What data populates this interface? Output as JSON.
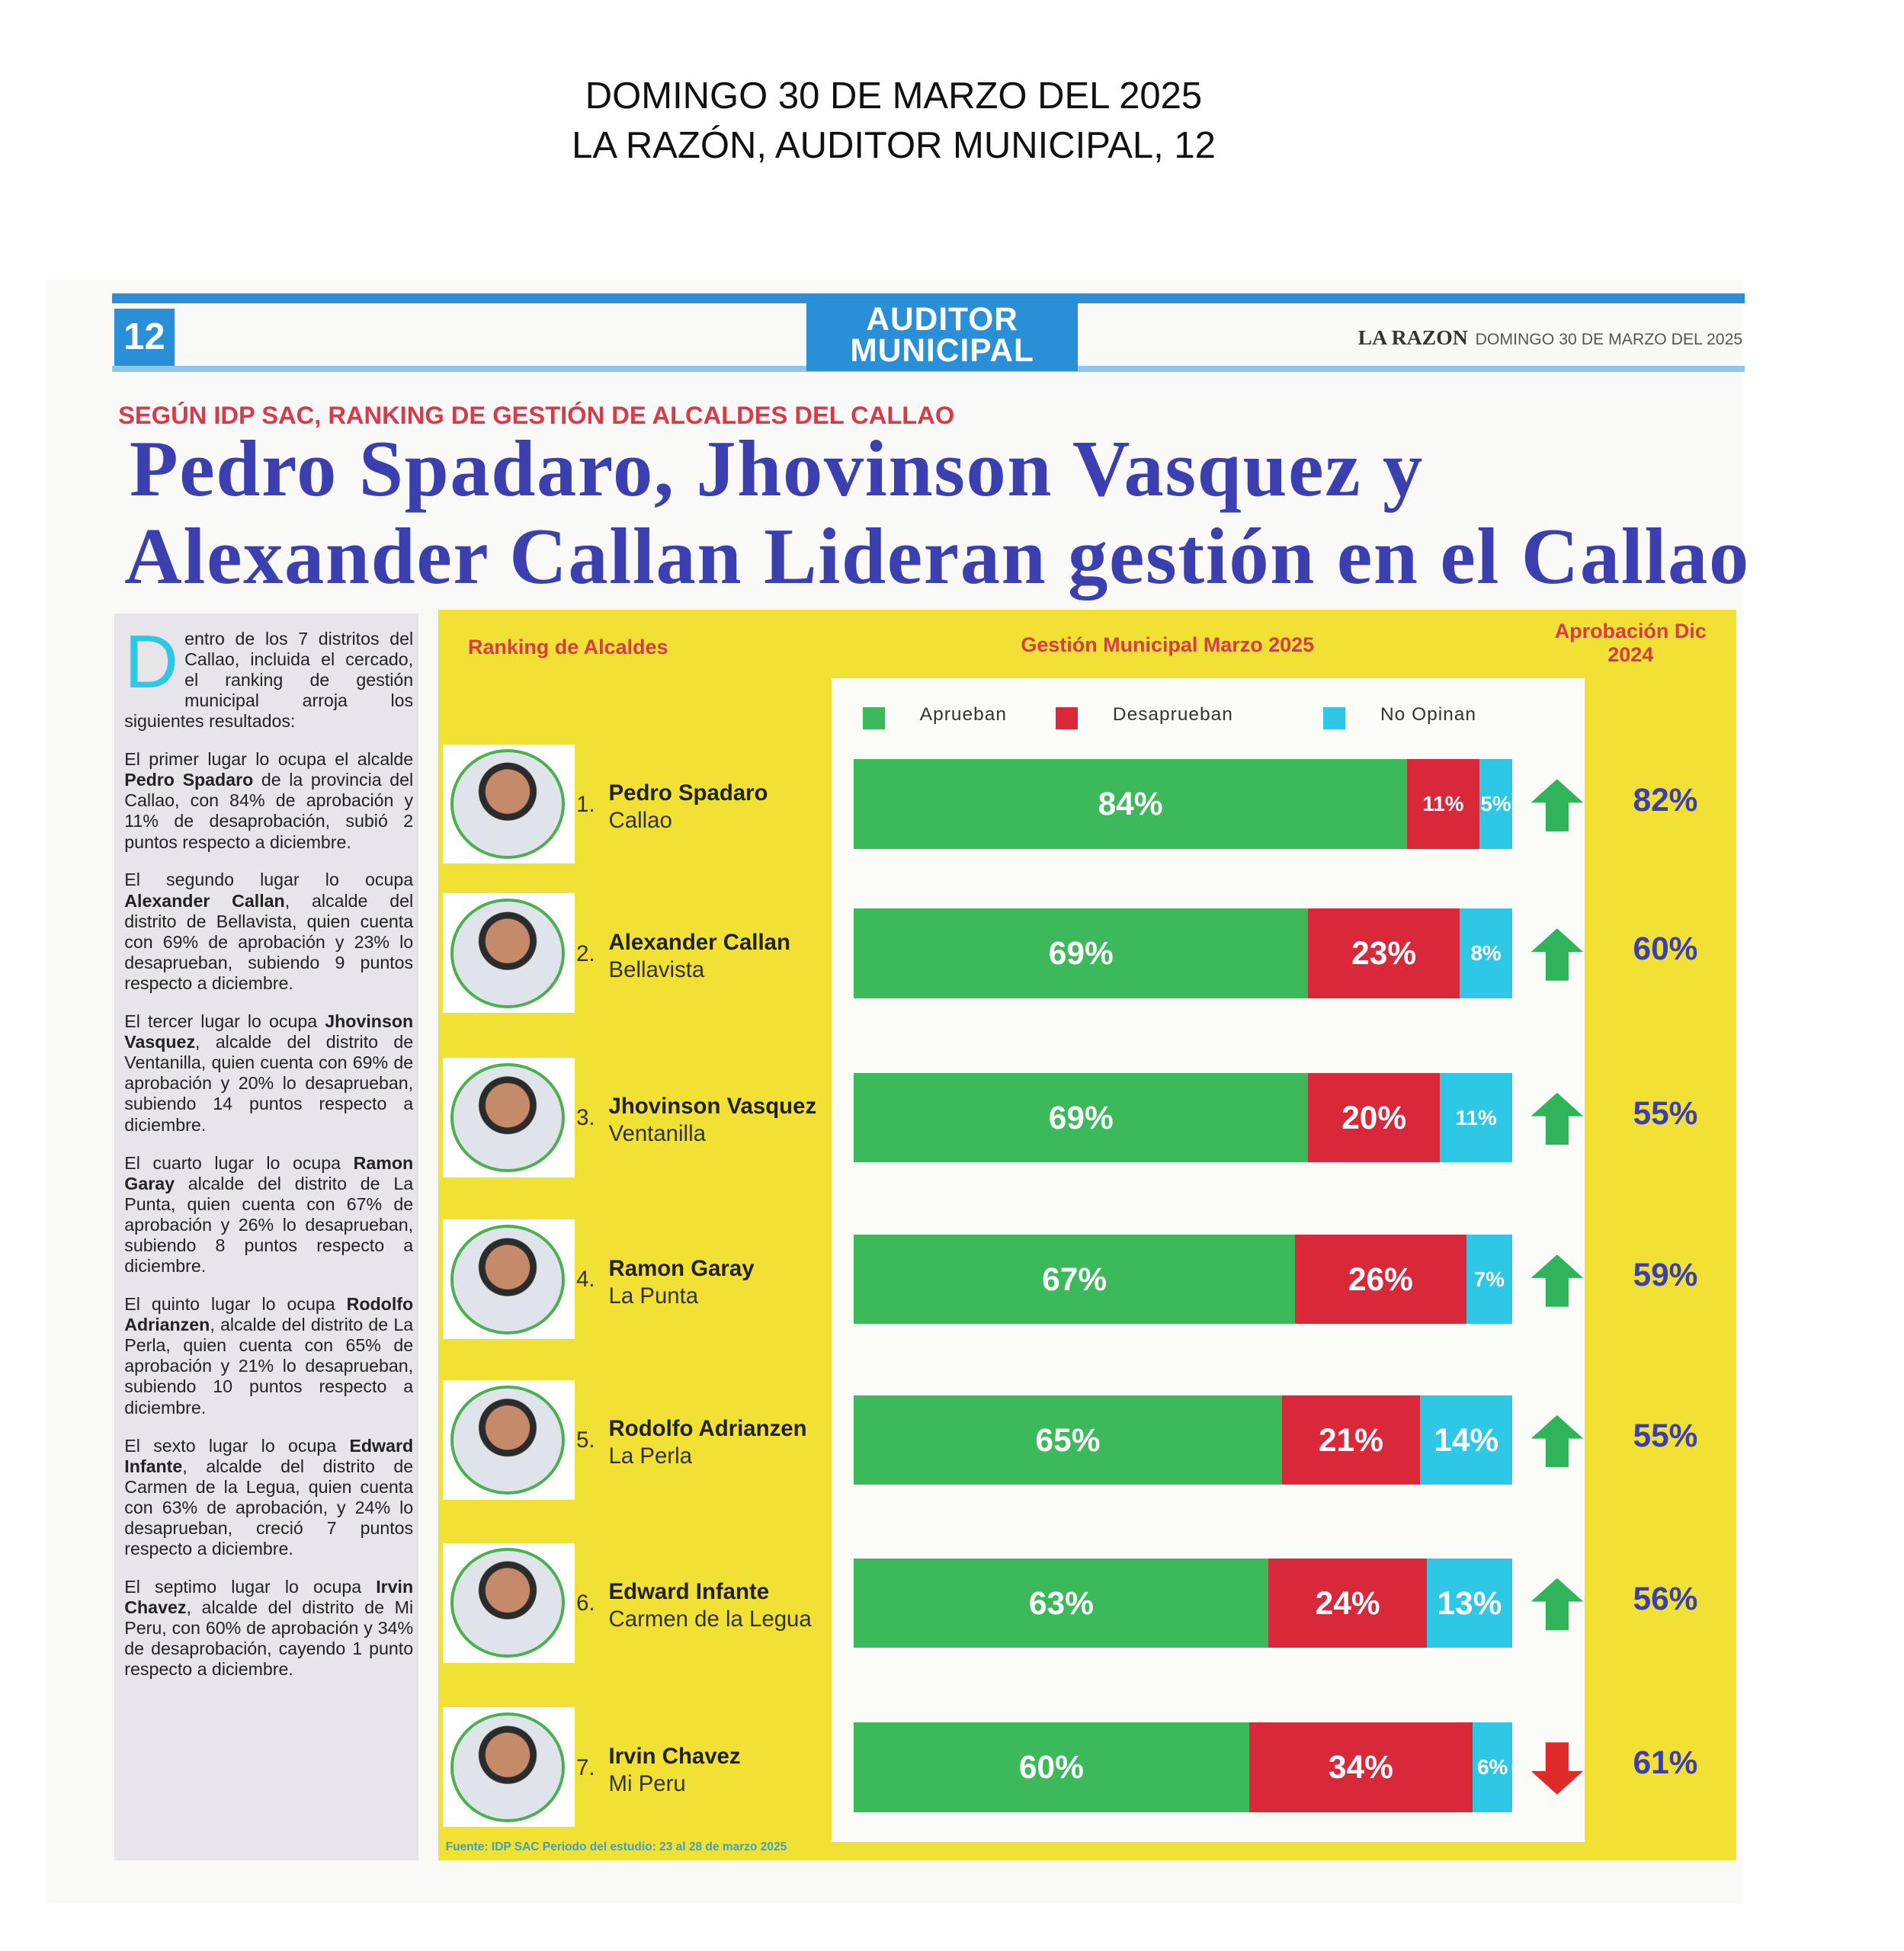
{
  "caption": {
    "line1": "DOMINGO 30 DE MARZO DEL 2025",
    "line2": "LA RAZÓN, AUDITOR MUNICIPAL, 12"
  },
  "header": {
    "page_number": "12",
    "logo_line1": "AUDITOR",
    "logo_line2": "MUNICIPAL",
    "newspaper": "LA RAZON",
    "date": "DOMINGO 30 DE MARZO DEL 2025"
  },
  "kicker": "SEGÚN IDP SAC, RANKING DE GESTIÓN DE ALCALDES DEL CALLAO",
  "headline": {
    "line1": "Pedro Spadaro, Jhovinson Vasquez y",
    "line2": "Alexander Callan Lideran gestión en el Callao"
  },
  "article": {
    "intro": "Dentro de los 7 distritos del Callao, incluida el cercado, el ranking de gestión municipal arroja los siguientes resultados:",
    "paragraphs": [
      {
        "before": "El primer lugar lo ocupa el alcalde ",
        "name": "Pedro Spadaro",
        "after": " de la provincia del Callao, con 84% de aprobación y 11% de desaprobación, subió 2 puntos respecto a diciembre."
      },
      {
        "before": "El segundo lugar lo ocupa ",
        "name": "Alexander Callan",
        "after": ", alcalde del distrito de Bellavista, quien cuenta con 69% de aprobación y 23% lo desaprueban, subiendo 9 puntos respecto a diciembre."
      },
      {
        "before": "El tercer lugar lo ocupa ",
        "name": "Jhovinson Vasquez",
        "after": ", alcalde del distrito de Ventanilla, quien cuenta con 69% de aprobación y 20% lo desaprueban, subiendo 14 puntos respecto a diciembre."
      },
      {
        "before": "El cuarto lugar lo ocupa ",
        "name": "Ramon Garay",
        "after": " alcalde del distrito de La Punta, quien cuenta con 67% de aprobación y 26% lo desaprueban, subiendo 8 puntos respecto a diciembre."
      },
      {
        "before": "El quinto lugar lo ocupa ",
        "name": "Rodolfo Adrianzen",
        "after": ", alcalde del distrito de La Perla, quien cuenta con 65% de aprobación y 21% lo desaprueban, subiendo 10 puntos respecto a diciembre."
      },
      {
        "before": "El sexto lugar lo ocupa ",
        "name": "Edward Infante",
        "after": ", alcalde del distrito de Carmen de la Legua, quien cuenta con 63% de aprobación, y 24% lo desaprueban, creció 7 puntos respecto a diciembre."
      },
      {
        "before": "El septimo lugar lo ocupa ",
        "name": "Irvin Chavez",
        "after": ", alcalde del distrito de Mi Peru, con 60% de aprobación y 34% de desaprobación, cayendo 1 punto respecto a diciembre."
      }
    ]
  },
  "chart_data": {
    "type": "bar",
    "stacked": true,
    "orientation": "horizontal",
    "ranking_title": "Ranking de Alcaldes",
    "title": "Gestión Municipal Marzo 2025",
    "previous_title": "Aprobación Dic 2024",
    "ranks": [
      "1.",
      "2.",
      "3.",
      "4.",
      "5.",
      "6.",
      "7."
    ],
    "categories": [
      "Pedro Spadaro",
      "Alexander Callan",
      "Jhovinson Vasquez",
      "Ramon Garay",
      "Rodolfo Adrianzen",
      "Edward Infante",
      "Irvin Chavez"
    ],
    "districts": [
      "Callao",
      "Bellavista",
      "Ventanilla",
      "La Punta",
      "La Perla",
      "Carmen de la Legua",
      "Mi Peru"
    ],
    "xlim": [
      0,
      100
    ],
    "series": [
      {
        "name": "Aprueban",
        "color": "#3cb95a",
        "values": [
          84,
          69,
          69,
          67,
          65,
          63,
          60
        ],
        "value_labels": [
          "84%",
          "69%",
          "69%",
          "67%",
          "65%",
          "63%",
          "60%"
        ]
      },
      {
        "name": "Desaprueban",
        "color": "#d8283a",
        "values": [
          11,
          23,
          20,
          26,
          21,
          24,
          34
        ],
        "value_labels": [
          "11%",
          "23%",
          "20%",
          "26%",
          "21%",
          "24%",
          "34%"
        ]
      },
      {
        "name": "No Opinan",
        "color": "#2ec8e6",
        "values": [
          5,
          8,
          11,
          7,
          14,
          13,
          6
        ],
        "value_labels": [
          "5%",
          "8%",
          "11%",
          "7%",
          "14%",
          "13%",
          "6%"
        ]
      }
    ],
    "trend": [
      "up",
      "up",
      "up",
      "up",
      "up",
      "up",
      "down"
    ],
    "previous_values": [
      82,
      60,
      55,
      59,
      55,
      56,
      61
    ],
    "previous_value_labels": [
      "82%",
      "60%",
      "55%",
      "59%",
      "55%",
      "56%",
      "61%"
    ],
    "source": "Fuente: IDP SAC Periodo del estudio: 23 al 28 de marzo 2025"
  }
}
